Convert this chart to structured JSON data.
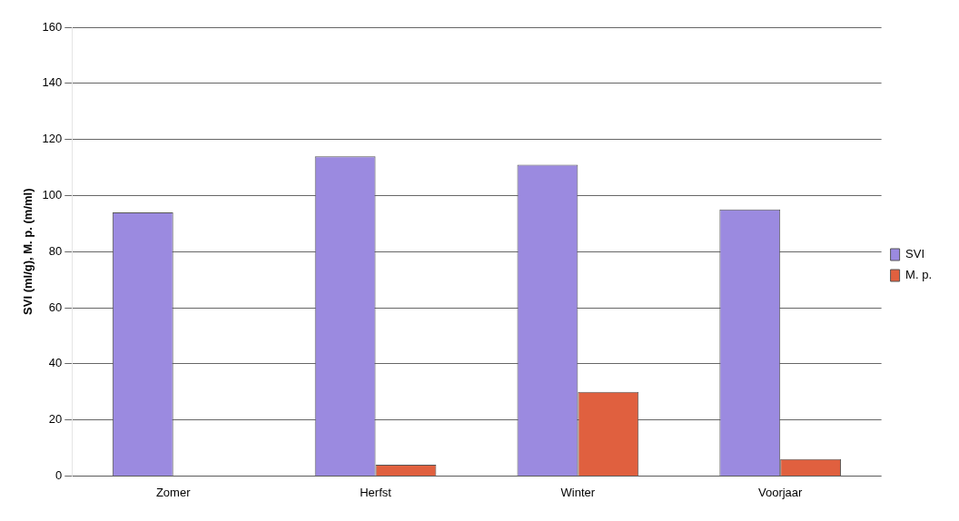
{
  "chart_data": {
    "type": "bar",
    "ylabel": "SVI (ml/g), M. p. (m/ml)",
    "categories": [
      "Zomer",
      "Herfst",
      "Winter",
      "Voorjaar"
    ],
    "series": [
      {
        "name": "SVI",
        "color": "#9b8ae0",
        "values": [
          94,
          114,
          111,
          95
        ]
      },
      {
        "name": "M. p.",
        "color": "#e0603f",
        "values": [
          null,
          4,
          30,
          6
        ]
      }
    ],
    "ylim": [
      0,
      160
    ],
    "yticks": [
      0,
      20,
      40,
      60,
      80,
      100,
      120,
      140,
      160
    ],
    "grid": "y",
    "legend": "right"
  }
}
